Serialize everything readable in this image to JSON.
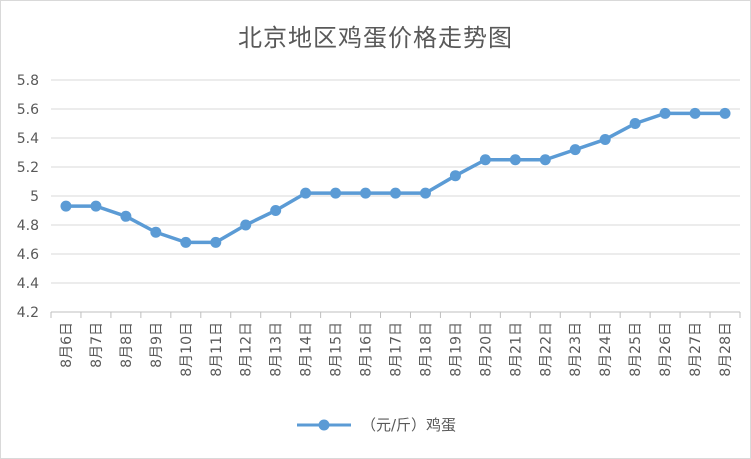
{
  "chart_data": {
    "type": "line",
    "title": "北京地区鸡蛋价格走势图",
    "categories": [
      "8月6日",
      "8月7日",
      "8月8日",
      "8月9日",
      "8月10日",
      "8月11日",
      "8月12日",
      "8月13日",
      "8月14日",
      "8月15日",
      "8月16日",
      "8月17日",
      "8月18日",
      "8月19日",
      "8月20日",
      "8月21日",
      "8月22日",
      "8月23日",
      "8月24日",
      "8月25日",
      "8月26日",
      "8月27日",
      "8月28日"
    ],
    "series": [
      {
        "name": "（元/斤）鸡蛋",
        "values": [
          4.93,
          4.93,
          4.86,
          4.75,
          4.68,
          4.68,
          4.8,
          4.9,
          5.02,
          5.02,
          5.02,
          5.02,
          5.02,
          5.14,
          5.25,
          5.25,
          5.25,
          5.32,
          5.39,
          5.5,
          5.57,
          5.57,
          5.57
        ],
        "color": "#5b9bd5"
      }
    ],
    "ylim": [
      4.2,
      5.8
    ],
    "yticks": [
      "4.2",
      "4.4",
      "4.6",
      "4.8",
      "5",
      "5.2",
      "5.4",
      "5.6",
      "5.8"
    ],
    "grid": true,
    "legend": "bottom"
  }
}
